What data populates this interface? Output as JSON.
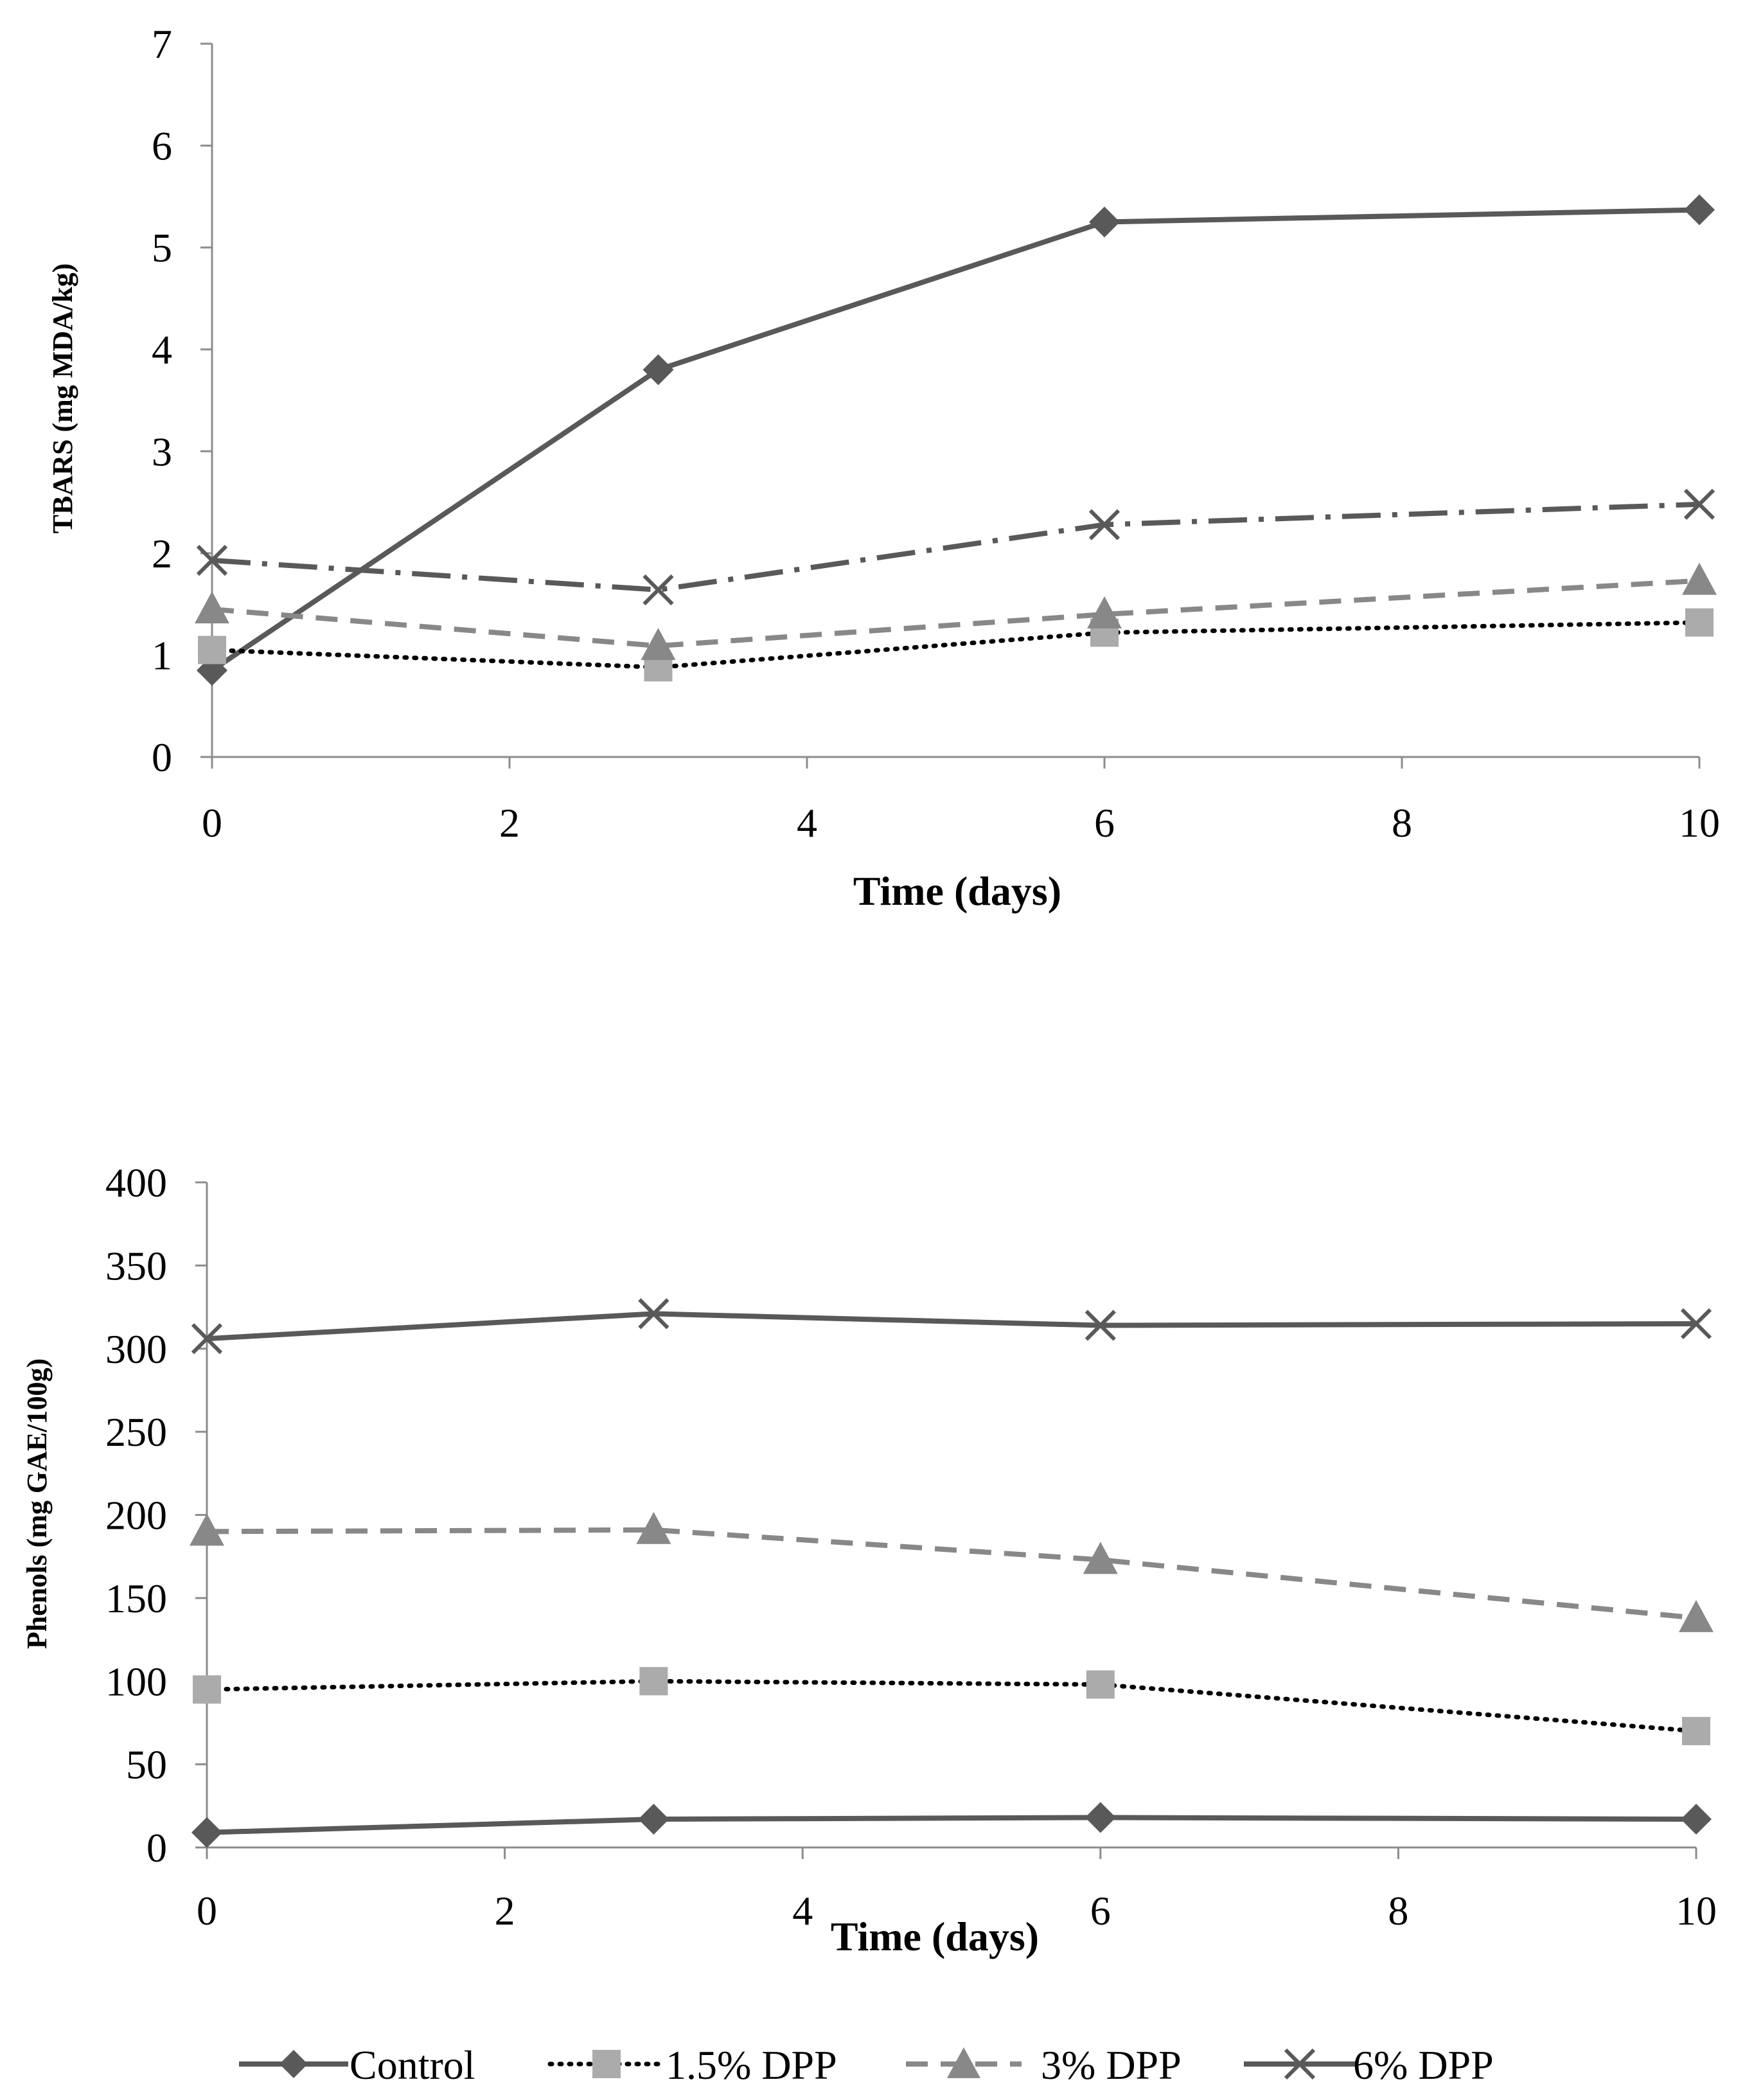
{
  "chart_data": [
    {
      "type": "line",
      "title": "",
      "xlabel": "Time (days)",
      "ylabel": "TBARS (mg MDA/kg)",
      "xlim": [
        0,
        10
      ],
      "ylim": [
        0,
        7
      ],
      "xticks": [
        "0",
        "2",
        "4",
        "6",
        "8",
        "10"
      ],
      "yticks": [
        "0",
        "1",
        "2",
        "3",
        "4",
        "5",
        "6",
        "7"
      ],
      "x": [
        0,
        3,
        6,
        10
      ],
      "series": [
        {
          "name": "Control",
          "values": [
            0.85,
            3.8,
            5.25,
            5.37
          ]
        },
        {
          "name": "1.5% DPP",
          "values": [
            1.05,
            0.88,
            1.22,
            1.32
          ]
        },
        {
          "name": "3% DPP",
          "values": [
            1.45,
            1.09,
            1.4,
            1.73
          ]
        },
        {
          "name": "6% DPP",
          "values": [
            1.93,
            1.64,
            2.28,
            2.48
          ]
        }
      ]
    },
    {
      "type": "line",
      "title": "",
      "xlabel": "Time (days)",
      "ylabel": "Phenols (mg GAE/100g)",
      "xlim": [
        0,
        10
      ],
      "ylim": [
        0,
        400
      ],
      "xticks": [
        "0",
        "2",
        "4",
        "6",
        "8",
        "10"
      ],
      "yticks": [
        "0",
        "50",
        "100",
        "150",
        "200",
        "250",
        "300",
        "350",
        "400"
      ],
      "x": [
        0,
        3,
        6,
        10
      ],
      "series": [
        {
          "name": "Control",
          "values": [
            9,
            17,
            18,
            17
          ]
        },
        {
          "name": "1.5% DPP",
          "values": [
            95,
            100,
            98,
            70
          ]
        },
        {
          "name": "3% DPP",
          "values": [
            190,
            191,
            173,
            138
          ]
        },
        {
          "name": "6% DPP",
          "values": [
            306,
            321,
            314,
            315
          ]
        }
      ]
    }
  ],
  "legend": {
    "position": "bottom",
    "items": [
      {
        "label": "Control",
        "color": "#595959",
        "marker": "diamond",
        "dash": "solid"
      },
      {
        "label": "1.5% DPP",
        "color": "#000000",
        "marker": "square",
        "marker_color": "#ababab",
        "dash": "dotted"
      },
      {
        "label": "3% DPP",
        "color": "#888888",
        "marker": "triangle",
        "dash": "dashed"
      },
      {
        "label": "6% DPP",
        "color": "#595959",
        "marker": "cross",
        "dash": "solid"
      }
    ]
  },
  "series_styles": {
    "top": [
      {
        "color": "#595959",
        "marker": "diamond",
        "dash": "solid"
      },
      {
        "color": "#000000",
        "marker_color": "#ababab",
        "marker": "square",
        "dash": "dotted"
      },
      {
        "color": "#888888",
        "marker": "triangle",
        "dash": "dashed"
      },
      {
        "color": "#595959",
        "marker": "cross",
        "dash": "dashdot"
      }
    ],
    "bottom": [
      {
        "color": "#595959",
        "marker": "diamond",
        "dash": "solid"
      },
      {
        "color": "#000000",
        "marker_color": "#ababab",
        "marker": "square",
        "dash": "dotted"
      },
      {
        "color": "#888888",
        "marker": "triangle",
        "dash": "dashed"
      },
      {
        "color": "#595959",
        "marker": "cross",
        "dash": "solid"
      }
    ]
  }
}
